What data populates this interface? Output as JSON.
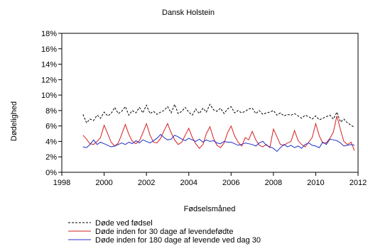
{
  "chart_data": {
    "type": "line",
    "title": "Dansk Holstein",
    "xlabel": "Fødselsmåned",
    "ylabel": "Dødelighed",
    "xlim": [
      1998,
      2012
    ],
    "ylim": [
      0,
      18
    ],
    "x_ticks": [
      "1998",
      "2000",
      "2002",
      "2004",
      "2006",
      "2008",
      "2010",
      "2012"
    ],
    "y_ticks": [
      "0%",
      "2%",
      "4%",
      "6%",
      "8%",
      "10%",
      "12%",
      "14%",
      "16%",
      "18%"
    ],
    "grid": false,
    "legend_position": "bottom",
    "series": [
      {
        "name": "Døde ved fødsel",
        "color": "#000000",
        "dash": "dashed",
        "x": [
          1999.0,
          1999.17,
          1999.33,
          1999.5,
          1999.67,
          1999.83,
          2000.0,
          2000.17,
          2000.33,
          2000.5,
          2000.67,
          2000.83,
          2001.0,
          2001.17,
          2001.33,
          2001.5,
          2001.67,
          2001.83,
          2002.0,
          2002.17,
          2002.33,
          2002.5,
          2002.67,
          2002.83,
          2003.0,
          2003.17,
          2003.33,
          2003.5,
          2003.67,
          2003.83,
          2004.0,
          2004.17,
          2004.33,
          2004.5,
          2004.67,
          2004.83,
          2005.0,
          2005.17,
          2005.33,
          2005.5,
          2005.67,
          2005.83,
          2006.0,
          2006.17,
          2006.33,
          2006.5,
          2006.67,
          2006.83,
          2007.0,
          2007.17,
          2007.33,
          2007.5,
          2007.67,
          2007.83,
          2008.0,
          2008.17,
          2008.33,
          2008.5,
          2008.67,
          2008.83,
          2009.0,
          2009.17,
          2009.33,
          2009.5,
          2009.67,
          2009.83,
          2010.0,
          2010.17,
          2010.33,
          2010.5,
          2010.67,
          2010.83,
          2011.0,
          2011.17,
          2011.33,
          2011.5,
          2011.67,
          2011.83
        ],
        "values": [
          7.5,
          6.4,
          6.9,
          6.7,
          7.4,
          7.0,
          7.8,
          7.3,
          7.6,
          8.4,
          7.6,
          7.9,
          8.5,
          7.4,
          8.0,
          7.7,
          8.4,
          7.7,
          8.7,
          7.6,
          7.9,
          7.5,
          7.8,
          8.0,
          8.5,
          7.7,
          8.8,
          7.6,
          7.9,
          8.4,
          7.8,
          7.4,
          8.2,
          7.6,
          8.3,
          7.8,
          8.8,
          8.1,
          7.9,
          8.3,
          7.6,
          8.2,
          8.5,
          7.7,
          8.0,
          7.7,
          7.9,
          8.2,
          8.3,
          7.6,
          8.0,
          7.5,
          7.7,
          7.8,
          8.0,
          7.4,
          7.7,
          7.3,
          7.5,
          7.4,
          7.6,
          7.3,
          7.0,
          7.4,
          7.2,
          6.9,
          7.3,
          6.8,
          7.0,
          7.2,
          7.4,
          6.9,
          7.8,
          6.5,
          6.9,
          6.4,
          6.1,
          5.8
        ]
      },
      {
        "name": "Døde inden for 30 dage af levendefødte",
        "color": "#d62020",
        "dash": "solid",
        "x": [
          1999.0,
          1999.17,
          1999.33,
          1999.5,
          1999.67,
          1999.83,
          2000.0,
          2000.17,
          2000.33,
          2000.5,
          2000.67,
          2000.83,
          2001.0,
          2001.17,
          2001.33,
          2001.5,
          2001.67,
          2001.83,
          2002.0,
          2002.17,
          2002.33,
          2002.5,
          2002.67,
          2002.83,
          2003.0,
          2003.17,
          2003.33,
          2003.5,
          2003.67,
          2003.83,
          2004.0,
          2004.17,
          2004.33,
          2004.5,
          2004.67,
          2004.83,
          2005.0,
          2005.17,
          2005.33,
          2005.5,
          2005.67,
          2005.83,
          2006.0,
          2006.17,
          2006.33,
          2006.5,
          2006.67,
          2006.83,
          2007.0,
          2007.17,
          2007.33,
          2007.5,
          2007.67,
          2007.83,
          2008.0,
          2008.17,
          2008.33,
          2008.5,
          2008.67,
          2008.83,
          2009.0,
          2009.17,
          2009.33,
          2009.5,
          2009.67,
          2009.83,
          2010.0,
          2010.17,
          2010.33,
          2010.5,
          2010.67,
          2010.83,
          2011.0,
          2011.17,
          2011.33,
          2011.5,
          2011.67,
          2011.83
        ],
        "values": [
          4.8,
          4.3,
          3.7,
          3.6,
          4.0,
          4.5,
          6.1,
          5.0,
          3.9,
          3.4,
          3.8,
          4.9,
          6.2,
          4.9,
          4.0,
          3.7,
          4.1,
          5.1,
          6.3,
          4.8,
          3.9,
          3.8,
          4.4,
          5.4,
          6.3,
          5.1,
          4.2,
          3.6,
          3.9,
          4.8,
          5.7,
          4.5,
          3.7,
          3.1,
          3.6,
          5.0,
          5.9,
          4.4,
          3.5,
          3.2,
          3.8,
          5.1,
          6.0,
          4.7,
          3.9,
          3.4,
          4.5,
          4.2,
          5.3,
          4.2,
          3.5,
          3.3,
          3.6,
          3.2,
          5.6,
          4.6,
          3.6,
          3.5,
          3.8,
          4.0,
          5.4,
          4.1,
          3.6,
          3.3,
          3.9,
          4.5,
          6.3,
          4.7,
          3.8,
          3.8,
          4.4,
          5.2,
          7.3,
          5.5,
          4.0,
          3.6,
          3.9,
          2.8
        ]
      },
      {
        "name": "Døde inden for 180 dage af levende ved dag 30",
        "color": "#2030c8",
        "dash": "solid",
        "x": [
          1999.0,
          1999.17,
          1999.33,
          1999.5,
          1999.67,
          1999.83,
          2000.0,
          2000.17,
          2000.33,
          2000.5,
          2000.67,
          2000.83,
          2001.0,
          2001.17,
          2001.33,
          2001.5,
          2001.67,
          2001.83,
          2002.0,
          2002.17,
          2002.33,
          2002.5,
          2002.67,
          2002.83,
          2003.0,
          2003.17,
          2003.33,
          2003.5,
          2003.67,
          2003.83,
          2004.0,
          2004.17,
          2004.33,
          2004.5,
          2004.67,
          2004.83,
          2005.0,
          2005.17,
          2005.33,
          2005.5,
          2005.67,
          2005.83,
          2006.0,
          2006.17,
          2006.33,
          2006.5,
          2006.67,
          2006.83,
          2007.0,
          2007.17,
          2007.33,
          2007.5,
          2007.67,
          2007.83,
          2008.0,
          2008.17,
          2008.33,
          2008.5,
          2008.67,
          2008.83,
          2009.0,
          2009.17,
          2009.33,
          2009.5,
          2009.67,
          2009.83,
          2010.0,
          2010.17,
          2010.33,
          2010.5,
          2010.67,
          2010.83,
          2011.0,
          2011.17,
          2011.33,
          2011.5,
          2011.67,
          2011.83
        ],
        "values": [
          3.3,
          3.2,
          3.6,
          4.2,
          3.6,
          3.9,
          3.7,
          3.5,
          3.3,
          3.4,
          3.6,
          3.8,
          3.6,
          3.9,
          3.7,
          4.1,
          3.8,
          4.2,
          4.0,
          3.8,
          4.1,
          4.4,
          4.9,
          4.5,
          4.2,
          4.3,
          4.8,
          4.6,
          4.3,
          4.1,
          4.4,
          4.2,
          4.0,
          4.3,
          3.9,
          4.2,
          4.0,
          4.1,
          3.8,
          3.7,
          4.0,
          3.9,
          3.9,
          3.7,
          3.5,
          3.6,
          3.8,
          3.7,
          3.6,
          3.4,
          3.8,
          4.0,
          3.5,
          3.3,
          3.1,
          2.7,
          3.2,
          3.6,
          3.3,
          3.5,
          3.2,
          3.4,
          3.1,
          3.6,
          3.8,
          3.5,
          3.4,
          3.2,
          3.9,
          3.6,
          4.3,
          4.2,
          4.1,
          3.8,
          3.4,
          3.5,
          3.6,
          3.5
        ]
      }
    ]
  }
}
